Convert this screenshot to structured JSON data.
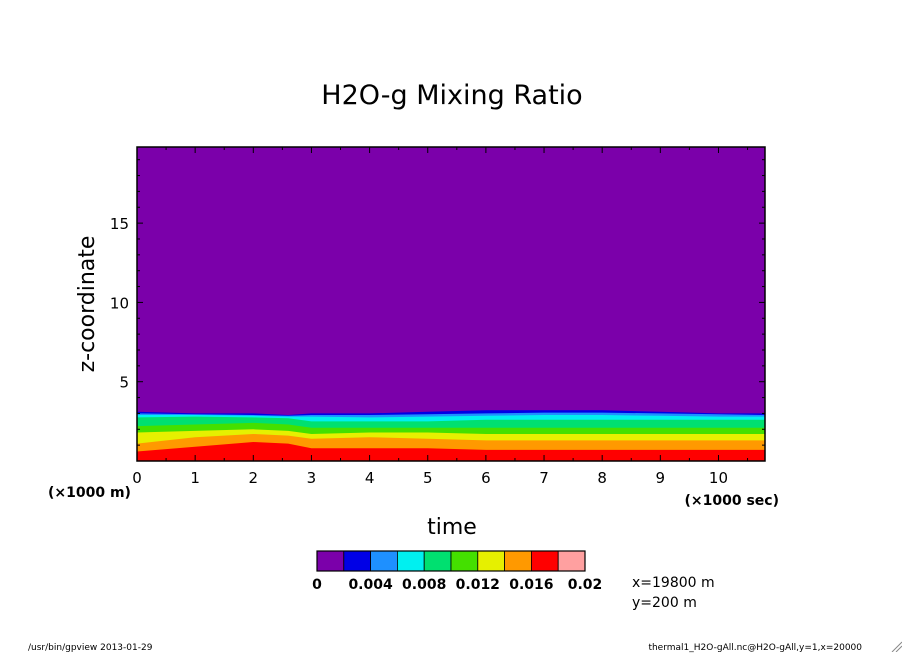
{
  "chart_data": {
    "type": "heatmap",
    "title": "H2O-g Mixing Ratio",
    "xlabel": "time",
    "ylabel": "z-coordinate",
    "x_unit_label": "(×1000 sec)",
    "y_unit_label": "(×1000 m)",
    "xlim": [
      0,
      10.8
    ],
    "ylim": [
      0,
      19.8
    ],
    "x_ticks": [
      0,
      1,
      2,
      3,
      4,
      5,
      6,
      7,
      8,
      9,
      10
    ],
    "y_ticks": [
      5,
      10,
      15
    ],
    "colorbar": {
      "tick_labels": [
        "0",
        "0.004",
        "0.008",
        "0.012",
        "0.016",
        "0.02"
      ],
      "colors": [
        "#7b00aa",
        "#0000e6",
        "#1e90ff",
        "#00f0f0",
        "#00e070",
        "#44e000",
        "#e6f000",
        "#ff9900",
        "#ff0000",
        "#ffa0a0"
      ]
    },
    "background_color": "#7b00aa",
    "contour_boundaries_x": [
      0,
      1,
      2,
      2.6,
      3,
      4,
      5,
      6,
      7,
      8,
      9,
      10,
      10.8
    ],
    "contour_levels": [
      {
        "color": "#0000e6",
        "top": [
          3.1,
          3.0,
          3.0,
          2.9,
          3.0,
          3.0,
          3.1,
          3.2,
          3.2,
          3.2,
          3.1,
          3.0,
          3.0
        ]
      },
      {
        "color": "#1e90ff",
        "top": [
          3.0,
          2.95,
          2.9,
          2.85,
          2.9,
          2.9,
          2.95,
          3.0,
          3.05,
          3.05,
          3.0,
          2.95,
          2.9
        ]
      },
      {
        "color": "#00f0f0",
        "top": [
          2.9,
          2.9,
          2.85,
          2.8,
          2.8,
          2.75,
          2.8,
          2.85,
          2.9,
          2.9,
          2.85,
          2.8,
          2.8
        ]
      },
      {
        "color": "#00e070",
        "top": [
          2.75,
          2.8,
          2.75,
          2.7,
          2.5,
          2.5,
          2.5,
          2.6,
          2.6,
          2.6,
          2.6,
          2.6,
          2.6
        ]
      },
      {
        "color": "#44e000",
        "top": [
          2.2,
          2.3,
          2.4,
          2.3,
          2.1,
          2.1,
          2.1,
          2.1,
          2.1,
          2.1,
          2.1,
          2.1,
          2.1
        ]
      },
      {
        "color": "#e6f000",
        "top": [
          1.8,
          1.9,
          2.0,
          1.9,
          1.7,
          1.8,
          1.8,
          1.7,
          1.7,
          1.7,
          1.7,
          1.7,
          1.7
        ]
      },
      {
        "color": "#ff9900",
        "top": [
          1.1,
          1.5,
          1.7,
          1.6,
          1.4,
          1.5,
          1.4,
          1.3,
          1.3,
          1.3,
          1.3,
          1.3,
          1.3
        ]
      },
      {
        "color": "#ff0000",
        "top": [
          0.6,
          0.9,
          1.2,
          1.1,
          0.8,
          0.8,
          0.8,
          0.7,
          0.7,
          0.7,
          0.7,
          0.7,
          0.7
        ]
      }
    ],
    "annotations": [
      "x=19800 m",
      "y=200 m"
    ]
  },
  "footer": {
    "left": "/usr/bin/gpview  2013-01-29",
    "right": "thermal1_H2O-gAll.nc@H2O-gAll,y=1,x=20000"
  }
}
